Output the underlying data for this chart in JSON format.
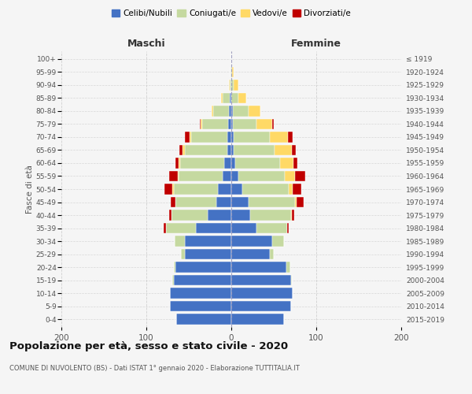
{
  "age_groups": [
    "0-4",
    "5-9",
    "10-14",
    "15-19",
    "20-24",
    "25-29",
    "30-34",
    "35-39",
    "40-44",
    "45-49",
    "50-54",
    "55-59",
    "60-64",
    "65-69",
    "70-74",
    "75-79",
    "80-84",
    "85-89",
    "90-94",
    "95-99",
    "100+"
  ],
  "birth_years": [
    "2015-2019",
    "2010-2014",
    "2005-2009",
    "2000-2004",
    "1995-1999",
    "1990-1994",
    "1985-1989",
    "1980-1984",
    "1975-1979",
    "1970-1974",
    "1965-1969",
    "1960-1964",
    "1955-1959",
    "1950-1954",
    "1945-1949",
    "1940-1944",
    "1935-1939",
    "1930-1934",
    "1925-1929",
    "1920-1924",
    "≤ 1919"
  ],
  "maschi": {
    "celibi": [
      65,
      72,
      72,
      68,
      66,
      55,
      55,
      42,
      28,
      18,
      16,
      10,
      8,
      5,
      5,
      4,
      3,
      2,
      0,
      0,
      0
    ],
    "coniugati": [
      0,
      0,
      0,
      1,
      2,
      4,
      12,
      35,
      42,
      48,
      52,
      52,
      52,
      50,
      42,
      30,
      18,
      8,
      2,
      1,
      0
    ],
    "vedovi": [
      0,
      0,
      0,
      0,
      0,
      0,
      0,
      0,
      0,
      0,
      1,
      1,
      2,
      2,
      2,
      2,
      2,
      2,
      1,
      0,
      0
    ],
    "divorziati": [
      0,
      0,
      0,
      0,
      0,
      0,
      0,
      3,
      3,
      5,
      10,
      10,
      4,
      4,
      6,
      1,
      0,
      0,
      0,
      0,
      0
    ]
  },
  "femmine": {
    "nubili": [
      62,
      70,
      72,
      70,
      65,
      45,
      48,
      30,
      22,
      20,
      13,
      8,
      5,
      3,
      3,
      2,
      2,
      0,
      0,
      0,
      0
    ],
    "coniugate": [
      0,
      0,
      0,
      1,
      4,
      5,
      14,
      36,
      48,
      55,
      55,
      55,
      52,
      48,
      42,
      28,
      18,
      8,
      3,
      1,
      0
    ],
    "vedove": [
      0,
      0,
      0,
      0,
      0,
      0,
      0,
      0,
      1,
      2,
      4,
      12,
      16,
      20,
      22,
      18,
      14,
      10,
      5,
      2,
      0
    ],
    "divorziate": [
      0,
      0,
      0,
      0,
      0,
      0,
      0,
      2,
      3,
      8,
      10,
      12,
      5,
      5,
      5,
      2,
      0,
      0,
      0,
      0,
      0
    ]
  },
  "colors": {
    "celibi": "#4472C4",
    "coniugati": "#c5d9a0",
    "vedovi": "#FFD966",
    "divorziati": "#C00000"
  },
  "xlim": 200,
  "title": "Popolazione per età, sesso e stato civile - 2020",
  "subtitle": "COMUNE DI NUVOLENTO (BS) - Dati ISTAT 1° gennaio 2020 - Elaborazione TUTTITALIA.IT",
  "ylabel_left": "Fasce di età",
  "xlabel_left": "Maschi",
  "xlabel_right": "Femmine",
  "background_color": "#f5f5f5",
  "grid_color": "#cccccc"
}
